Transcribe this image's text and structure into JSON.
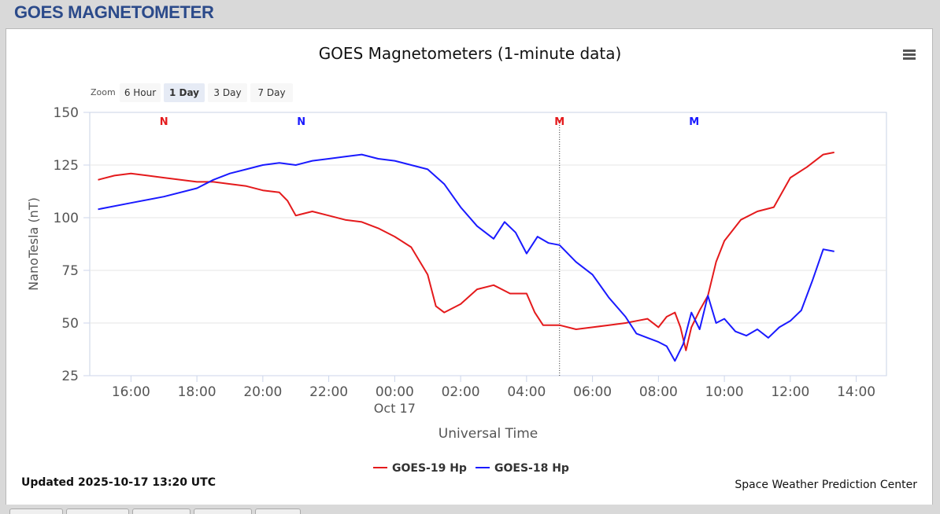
{
  "page": {
    "title": "GOES MAGNETOMETER"
  },
  "toolbar": {
    "zoom_label": "Zoom",
    "zoom_buttons": [
      "6 Hour",
      "1 Day",
      "3 Day",
      "7 Day"
    ],
    "active_zoom": "1 Day"
  },
  "footer": {
    "updated": "Updated 2025-10-17 13:20 UTC",
    "credit": "Space Weather Prediction Center"
  },
  "chart_data": {
    "type": "line",
    "title": "GOES Magnetometers (1-minute data)",
    "xlabel": "Universal Time",
    "ylabel": "NanoTesla (nT)",
    "xlim": [
      "2025-10-16 14:45",
      "2025-10-17 14:55"
    ],
    "ylim": [
      25,
      150
    ],
    "x_ticks": [
      "16:00",
      "18:00",
      "20:00",
      "22:00",
      "00:00",
      "02:00",
      "04:00",
      "06:00",
      "08:00",
      "10:00",
      "12:00",
      "14:00"
    ],
    "x_tick_hours": [
      16,
      18,
      20,
      22,
      24,
      26,
      28,
      30,
      32,
      34,
      36,
      38
    ],
    "date_label": {
      "text": "Oct 17",
      "under_tick": "00:00"
    },
    "y_ticks": [
      25,
      50,
      75,
      100,
      125,
      150
    ],
    "grid": true,
    "legend_position": "bottom-center",
    "markers": [
      {
        "label": "N",
        "time": "2025-10-16 17:00",
        "color": "#e41a1c"
      },
      {
        "label": "N",
        "time": "2025-10-16 21:10",
        "color": "#1a1aff"
      },
      {
        "label": "M",
        "time": "2025-10-17 05:00",
        "color": "#e41a1c"
      },
      {
        "label": "M",
        "time": "2025-10-17 09:05",
        "color": "#1a1aff"
      }
    ],
    "vline_time": "2025-10-17 05:00",
    "series": [
      {
        "name": "GOES-19 Hp",
        "color": "#e41a1c",
        "x": [
          "2025-10-16 15:00",
          "2025-10-16 15:30",
          "2025-10-16 16:00",
          "2025-10-16 16:30",
          "2025-10-16 17:00",
          "2025-10-16 17:30",
          "2025-10-16 18:00",
          "2025-10-16 18:30",
          "2025-10-16 19:00",
          "2025-10-16 19:30",
          "2025-10-16 20:00",
          "2025-10-16 20:30",
          "2025-10-16 20:45",
          "2025-10-16 21:00",
          "2025-10-16 21:30",
          "2025-10-16 22:00",
          "2025-10-16 22:30",
          "2025-10-16 23:00",
          "2025-10-16 23:30",
          "2025-10-17 00:00",
          "2025-10-17 00:30",
          "2025-10-17 01:00",
          "2025-10-17 01:15",
          "2025-10-17 01:30",
          "2025-10-17 02:00",
          "2025-10-17 02:30",
          "2025-10-17 03:00",
          "2025-10-17 03:30",
          "2025-10-17 04:00",
          "2025-10-17 04:15",
          "2025-10-17 04:30",
          "2025-10-17 05:00",
          "2025-10-17 05:30",
          "2025-10-17 06:00",
          "2025-10-17 06:30",
          "2025-10-17 07:00",
          "2025-10-17 07:20",
          "2025-10-17 07:40",
          "2025-10-17 08:00",
          "2025-10-17 08:15",
          "2025-10-17 08:30",
          "2025-10-17 08:40",
          "2025-10-17 08:50",
          "2025-10-17 09:00",
          "2025-10-17 09:15",
          "2025-10-17 09:30",
          "2025-10-17 09:45",
          "2025-10-17 10:00",
          "2025-10-17 10:30",
          "2025-10-17 11:00",
          "2025-10-17 11:30",
          "2025-10-17 12:00",
          "2025-10-17 12:30",
          "2025-10-17 13:00",
          "2025-10-17 13:20"
        ],
        "values": [
          118,
          120,
          121,
          120,
          119,
          118,
          117,
          117,
          116,
          115,
          113,
          112,
          108,
          101,
          103,
          101,
          99,
          98,
          95,
          91,
          86,
          73,
          58,
          55,
          59,
          66,
          68,
          64,
          64,
          55,
          49,
          49,
          47,
          48,
          49,
          50,
          51,
          52,
          48,
          53,
          55,
          48,
          37,
          48,
          56,
          63,
          79,
          89,
          99,
          103,
          105,
          119,
          124,
          130,
          131
        ]
      },
      {
        "name": "GOES-18 Hp",
        "color": "#1a1aff",
        "x": [
          "2025-10-16 15:00",
          "2025-10-16 16:00",
          "2025-10-16 17:00",
          "2025-10-16 18:00",
          "2025-10-16 18:30",
          "2025-10-16 19:00",
          "2025-10-16 19:30",
          "2025-10-16 20:00",
          "2025-10-16 20:30",
          "2025-10-16 21:00",
          "2025-10-16 21:30",
          "2025-10-16 22:00",
          "2025-10-16 22:30",
          "2025-10-16 23:00",
          "2025-10-16 23:30",
          "2025-10-17 00:00",
          "2025-10-17 00:30",
          "2025-10-17 01:00",
          "2025-10-17 01:30",
          "2025-10-17 02:00",
          "2025-10-17 02:30",
          "2025-10-17 03:00",
          "2025-10-17 03:20",
          "2025-10-17 03:40",
          "2025-10-17 04:00",
          "2025-10-17 04:20",
          "2025-10-17 04:40",
          "2025-10-17 05:00",
          "2025-10-17 05:30",
          "2025-10-17 06:00",
          "2025-10-17 06:30",
          "2025-10-17 07:00",
          "2025-10-17 07:20",
          "2025-10-17 07:40",
          "2025-10-17 08:00",
          "2025-10-17 08:15",
          "2025-10-17 08:30",
          "2025-10-17 08:45",
          "2025-10-17 09:00",
          "2025-10-17 09:15",
          "2025-10-17 09:30",
          "2025-10-17 09:45",
          "2025-10-17 10:00",
          "2025-10-17 10:20",
          "2025-10-17 10:40",
          "2025-10-17 11:00",
          "2025-10-17 11:20",
          "2025-10-17 11:40",
          "2025-10-17 12:00",
          "2025-10-17 12:20",
          "2025-10-17 12:40",
          "2025-10-17 13:00",
          "2025-10-17 13:20"
        ],
        "values": [
          104,
          107,
          110,
          114,
          118,
          121,
          123,
          125,
          126,
          125,
          127,
          128,
          129,
          130,
          128,
          127,
          125,
          123,
          116,
          105,
          96,
          90,
          98,
          93,
          83,
          91,
          88,
          87,
          79,
          73,
          62,
          53,
          45,
          43,
          41,
          39,
          32,
          40,
          55,
          47,
          63,
          50,
          52,
          46,
          44,
          47,
          43,
          48,
          51,
          56,
          70,
          85,
          84
        ]
      }
    ]
  }
}
